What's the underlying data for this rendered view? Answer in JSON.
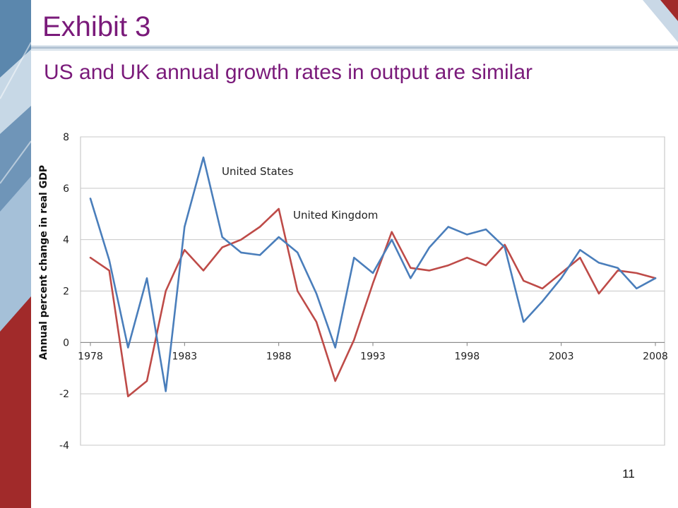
{
  "slide": {
    "title": "Exhibit 3",
    "subtitle": "US and UK annual growth rates in output are similar",
    "page_number": "11",
    "colors": {
      "title": "#7a1a7a",
      "accent_red": "#a12a2a",
      "accent_blue": "#b7cde0"
    }
  },
  "chart_data": {
    "type": "line",
    "xlabel": "",
    "ylabel": "Annual percent change in real GDP",
    "xlim": [
      1978,
      2008
    ],
    "ylim": [
      -4,
      8
    ],
    "y_ticks": [
      -4,
      -2,
      0,
      2,
      4,
      6,
      8
    ],
    "x_ticks": [
      1978,
      1983,
      1988,
      1993,
      1998,
      2003,
      2008
    ],
    "grid": "horizontal",
    "x": [
      1978,
      1979,
      1980,
      1981,
      1982,
      1983,
      1984,
      1985,
      1986,
      1987,
      1988,
      1989,
      1990,
      1991,
      1992,
      1993,
      1994,
      1995,
      1996,
      1997,
      1998,
      1999,
      2000,
      2001,
      2002,
      2003,
      2004,
      2005,
      2006,
      2007,
      2008
    ],
    "series": [
      {
        "name": "United States",
        "color": "#4a7ebb",
        "values": [
          5.6,
          3.2,
          -0.2,
          2.5,
          -1.9,
          4.5,
          7.2,
          4.1,
          3.5,
          3.4,
          4.1,
          3.5,
          1.9,
          -0.2,
          3.3,
          2.7,
          4.0,
          2.5,
          3.7,
          4.5,
          4.2,
          4.4,
          3.7,
          0.8,
          1.6,
          2.5,
          3.6,
          3.1,
          2.9,
          2.1,
          2.5
        ]
      },
      {
        "name": "United Kingdom",
        "color": "#be4b48",
        "values": [
          3.3,
          2.8,
          -2.1,
          -1.5,
          2.0,
          3.6,
          2.8,
          3.7,
          4.0,
          4.5,
          5.2,
          2.0,
          0.8,
          -1.5,
          0.1,
          2.3,
          4.3,
          2.9,
          2.8,
          3.0,
          3.3,
          3.0,
          3.8,
          2.4,
          2.1,
          2.7,
          3.3,
          1.9,
          2.8,
          2.7,
          2.5
        ]
      }
    ]
  }
}
